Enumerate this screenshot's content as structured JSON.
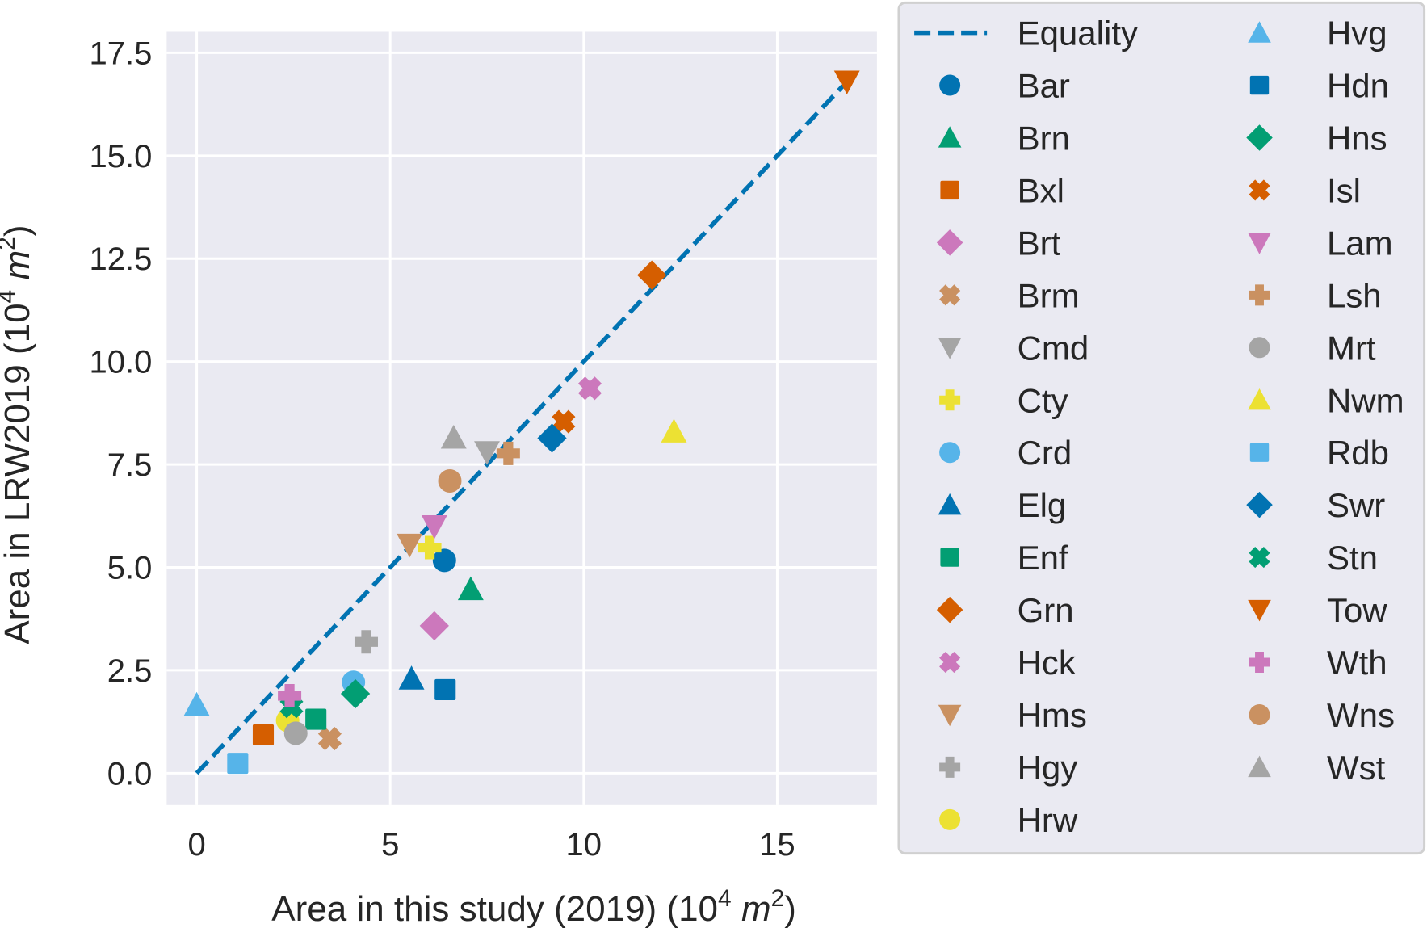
{
  "chart_data": {
    "type": "scatter",
    "title": "",
    "xlabel": "Area in this study (2019) (10",
    "xlabel_sup": "4",
    "xlabel_unit": "m",
    "xlabel_unit_sup": "2",
    "ylabel": "Area in LRW2019 (10",
    "ylabel_sup": "4",
    "ylabel_unit": "m",
    "ylabel_unit_sup": "2",
    "xlim": [
      -0.8,
      17.6
    ],
    "ylim": [
      -0.8,
      18.0
    ],
    "xticks": [
      0,
      5,
      10,
      15
    ],
    "xtick_labels": [
      "0",
      "5",
      "10",
      "15"
    ],
    "yticks": [
      0.0,
      2.5,
      5.0,
      7.5,
      10.0,
      12.5,
      15.0,
      17.5
    ],
    "ytick_labels": [
      "0.0",
      "2.5",
      "5.0",
      "7.5",
      "10.0",
      "12.5",
      "15.0",
      "17.5"
    ],
    "grid": true,
    "legend_placement": "outside-right",
    "equality_line": {
      "label": "Equality",
      "from": [
        0,
        0
      ],
      "to": [
        16.8,
        16.8
      ],
      "color": "#0173b2",
      "style": "dashed"
    },
    "series": [
      {
        "name": "Bar",
        "marker": "circle",
        "color": "#0173b2",
        "x": 6.4,
        "y": 5.17
      },
      {
        "name": "Brn",
        "marker": "triangle-up",
        "color": "#029e73",
        "x": 7.08,
        "y": 4.47
      },
      {
        "name": "Bxl",
        "marker": "square",
        "color": "#d55e00",
        "x": 1.72,
        "y": 0.93
      },
      {
        "name": "Brt",
        "marker": "diamond",
        "color": "#cc78bc",
        "x": 6.14,
        "y": 3.58
      },
      {
        "name": "Brm",
        "marker": "x",
        "color": "#ca9161",
        "x": 3.44,
        "y": 0.84
      },
      {
        "name": "Cmd",
        "marker": "triangle-down",
        "color": "#a5a5a5",
        "x": 7.5,
        "y": 7.8
      },
      {
        "name": "Cty",
        "marker": "plus",
        "color": "#ece133",
        "x": 6.02,
        "y": 5.48
      },
      {
        "name": "Crd",
        "marker": "circle",
        "color": "#56b4e9",
        "x": 4.05,
        "y": 2.21
      },
      {
        "name": "Elg",
        "marker": "triangle-up",
        "color": "#0173b2",
        "x": 5.55,
        "y": 2.3
      },
      {
        "name": "Enf",
        "marker": "square",
        "color": "#029e73",
        "x": 3.08,
        "y": 1.31
      },
      {
        "name": "Grn",
        "marker": "diamond",
        "color": "#d55e00",
        "x": 11.76,
        "y": 12.1
      },
      {
        "name": "Hck",
        "marker": "x",
        "color": "#cc78bc",
        "x": 10.16,
        "y": 9.35
      },
      {
        "name": "Hms",
        "marker": "triangle-down",
        "color": "#ca9161",
        "x": 5.5,
        "y": 5.55
      },
      {
        "name": "Hgy",
        "marker": "plus",
        "color": "#a5a5a5",
        "x": 4.38,
        "y": 3.19
      },
      {
        "name": "Hrw",
        "marker": "circle",
        "color": "#ece133",
        "x": 2.35,
        "y": 1.28
      },
      {
        "name": "Hvg",
        "marker": "triangle-up",
        "color": "#56b4e9",
        "x": 0.0,
        "y": 1.66
      },
      {
        "name": "Hdn",
        "marker": "square",
        "color": "#0173b2",
        "x": 6.42,
        "y": 2.03
      },
      {
        "name": "Hns",
        "marker": "diamond",
        "color": "#029e73",
        "x": 4.1,
        "y": 1.93
      },
      {
        "name": "Isl",
        "marker": "x",
        "color": "#d55e00",
        "x": 9.48,
        "y": 8.54
      },
      {
        "name": "Lam",
        "marker": "triangle-down",
        "color": "#cc78bc",
        "x": 6.14,
        "y": 6.0
      },
      {
        "name": "Lsh",
        "marker": "plus",
        "color": "#ca9161",
        "x": 8.05,
        "y": 7.77
      },
      {
        "name": "Mrt",
        "marker": "circle",
        "color": "#a5a5a5",
        "x": 2.56,
        "y": 0.97
      },
      {
        "name": "Nwm",
        "marker": "triangle-up",
        "color": "#ece133",
        "x": 12.33,
        "y": 8.3
      },
      {
        "name": "Rdb",
        "marker": "square",
        "color": "#56b4e9",
        "x": 1.06,
        "y": 0.24
      },
      {
        "name": "Swr",
        "marker": "diamond",
        "color": "#0173b2",
        "x": 9.18,
        "y": 8.14
      },
      {
        "name": "Stn",
        "marker": "x",
        "color": "#029e73",
        "x": 2.45,
        "y": 1.62
      },
      {
        "name": "Tow",
        "marker": "triangle-down",
        "color": "#d55e00",
        "x": 16.8,
        "y": 16.8
      },
      {
        "name": "Wth",
        "marker": "plus",
        "color": "#cc78bc",
        "x": 2.4,
        "y": 1.88
      },
      {
        "name": "Wns",
        "marker": "circle",
        "color": "#ca9161",
        "x": 6.54,
        "y": 7.1
      },
      {
        "name": "Wst",
        "marker": "triangle-up",
        "color": "#a5a5a5",
        "x": 6.64,
        "y": 8.15
      }
    ]
  },
  "style": {
    "plot_background": "#eaeaf2",
    "grid_color": "#ffffff",
    "legend_background": "#eaeaf2",
    "legend_border": "#d0d0d0",
    "text_color": "#262626"
  }
}
